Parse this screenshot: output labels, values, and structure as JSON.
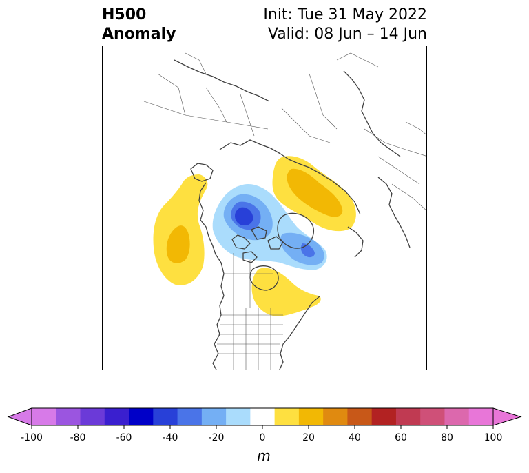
{
  "title": {
    "left": [
      "H500",
      "Anomaly"
    ],
    "right": [
      "Init: Tue 31 May 2022",
      "Valid: 08 Jun – 14 Jun"
    ]
  },
  "map": {
    "projection": "north-polar-stereographic",
    "region": "North America / Arctic / Eurasia",
    "field": "500 hPa geopotential height anomaly",
    "anomaly_features": [
      {
        "name": "Northeast Pacific ridge",
        "sign": "positive",
        "peak_value_m": 25
      },
      {
        "name": "Arctic / Canadian Archipelago trough",
        "sign": "negative",
        "peak_value_m": -45
      },
      {
        "name": "Greenland / Baffin trough",
        "sign": "negative",
        "peak_value_m": -30
      },
      {
        "name": "Siberian ridge",
        "sign": "positive",
        "peak_value_m": 25
      },
      {
        "name": "Great Lakes ridge",
        "sign": "positive",
        "peak_value_m": 15
      }
    ]
  },
  "colorbar": {
    "label": "m",
    "ticks": [
      "-100",
      "-80",
      "-60",
      "-40",
      "-20",
      "0",
      "20",
      "40",
      "60",
      "80",
      "100"
    ],
    "bins": [
      {
        "range": "<-100",
        "color": "#d77ae8"
      },
      {
        "range": "-100..-90",
        "color": "#d77ae8"
      },
      {
        "range": "-90..-80",
        "color": "#9b55e0"
      },
      {
        "range": "-80..-70",
        "color": "#6b3ad8"
      },
      {
        "range": "-70..-60",
        "color": "#3a1fcf"
      },
      {
        "range": "-60..-50",
        "color": "#0000c8"
      },
      {
        "range": "-50..-40",
        "color": "#2840d8"
      },
      {
        "range": "-40..-30",
        "color": "#4a74e8"
      },
      {
        "range": "-30..-20",
        "color": "#74aff4"
      },
      {
        "range": "-20..-10",
        "color": "#aadcfc"
      },
      {
        "range": "-10..10",
        "color": "#ffffff"
      },
      {
        "range": "10..20",
        "color": "#fee040"
      },
      {
        "range": "20..30",
        "color": "#f2b804"
      },
      {
        "range": "30..40",
        "color": "#e08a10"
      },
      {
        "range": "40..50",
        "color": "#c85818"
      },
      {
        "range": "50..60",
        "color": "#b22222"
      },
      {
        "range": "60..70",
        "color": "#c03a52"
      },
      {
        "range": "70..80",
        "color": "#cf5078"
      },
      {
        "range": "80..90",
        "color": "#dc68ad"
      },
      {
        "range": "90..100",
        "color": "#e876d8"
      },
      {
        "range": ">100",
        "color": "#e876d8"
      }
    ]
  }
}
